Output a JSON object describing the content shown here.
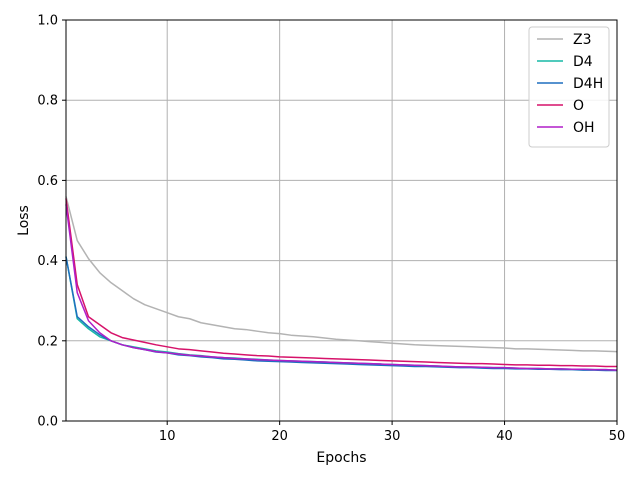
{
  "chart_data": {
    "type": "line",
    "xlabel": "Epochs",
    "ylabel": "Loss",
    "xlim": [
      1,
      50
    ],
    "ylim": [
      0.0,
      1.0
    ],
    "xticks": [
      10,
      20,
      30,
      40,
      50
    ],
    "xtick_labels": [
      "10",
      "20",
      "30",
      "40",
      "50"
    ],
    "yticks": [
      0.0,
      0.2,
      0.4,
      0.6,
      0.8,
      1.0
    ],
    "ytick_labels": [
      "0.0",
      "0.2",
      "0.4",
      "0.6",
      "0.8",
      "1.0"
    ],
    "grid": true,
    "legend": "top-right",
    "x": [
      1,
      2,
      3,
      4,
      5,
      6,
      7,
      8,
      9,
      10,
      11,
      12,
      13,
      14,
      15,
      16,
      17,
      18,
      19,
      20,
      21,
      22,
      23,
      24,
      25,
      26,
      27,
      28,
      29,
      30,
      31,
      32,
      33,
      34,
      35,
      36,
      37,
      38,
      39,
      40,
      41,
      42,
      43,
      44,
      45,
      46,
      47,
      48,
      49,
      50
    ],
    "series": [
      {
        "name": "Z3",
        "color": "#b3b3b3",
        "values": [
          0.56,
          0.45,
          0.405,
          0.37,
          0.345,
          0.325,
          0.305,
          0.29,
          0.28,
          0.27,
          0.26,
          0.255,
          0.245,
          0.24,
          0.235,
          0.23,
          0.228,
          0.224,
          0.22,
          0.218,
          0.214,
          0.212,
          0.21,
          0.207,
          0.204,
          0.202,
          0.2,
          0.198,
          0.196,
          0.194,
          0.192,
          0.19,
          0.189,
          0.188,
          0.187,
          0.186,
          0.185,
          0.184,
          0.183,
          0.182,
          0.18,
          0.18,
          0.179,
          0.178,
          0.177,
          0.176,
          0.175,
          0.175,
          0.174,
          0.173
        ]
      },
      {
        "name": "D4",
        "color": "#17b8a6",
        "values": [
          0.41,
          0.255,
          0.23,
          0.21,
          0.2,
          0.19,
          0.185,
          0.18,
          0.175,
          0.172,
          0.168,
          0.165,
          0.163,
          0.16,
          0.158,
          0.157,
          0.155,
          0.154,
          0.152,
          0.151,
          0.15,
          0.149,
          0.148,
          0.147,
          0.146,
          0.145,
          0.144,
          0.143,
          0.142,
          0.141,
          0.14,
          0.139,
          0.138,
          0.137,
          0.136,
          0.135,
          0.134,
          0.134,
          0.133,
          0.133,
          0.132,
          0.131,
          0.131,
          0.13,
          0.13,
          0.129,
          0.129,
          0.128,
          0.128,
          0.127
        ]
      },
      {
        "name": "D4H",
        "color": "#1f6fbf",
        "values": [
          0.41,
          0.26,
          0.235,
          0.215,
          0.2,
          0.19,
          0.183,
          0.178,
          0.172,
          0.17,
          0.165,
          0.163,
          0.16,
          0.158,
          0.155,
          0.154,
          0.152,
          0.15,
          0.149,
          0.148,
          0.147,
          0.146,
          0.145,
          0.144,
          0.143,
          0.142,
          0.141,
          0.14,
          0.139,
          0.138,
          0.137,
          0.136,
          0.136,
          0.135,
          0.134,
          0.133,
          0.133,
          0.132,
          0.131,
          0.131,
          0.13,
          0.13,
          0.129,
          0.129,
          0.128,
          0.128,
          0.127,
          0.127,
          0.126,
          0.126
        ]
      },
      {
        "name": "O",
        "color": "#d6126a",
        "values": [
          0.555,
          0.34,
          0.26,
          0.24,
          0.22,
          0.208,
          0.202,
          0.196,
          0.19,
          0.185,
          0.18,
          0.178,
          0.175,
          0.172,
          0.169,
          0.167,
          0.165,
          0.163,
          0.162,
          0.16,
          0.159,
          0.158,
          0.157,
          0.156,
          0.155,
          0.154,
          0.153,
          0.152,
          0.151,
          0.15,
          0.149,
          0.148,
          0.147,
          0.146,
          0.145,
          0.144,
          0.143,
          0.143,
          0.142,
          0.141,
          0.14,
          0.14,
          0.139,
          0.139,
          0.138,
          0.138,
          0.137,
          0.137,
          0.136,
          0.136
        ]
      },
      {
        "name": "OH",
        "color": "#b01ec8",
        "values": [
          0.54,
          0.32,
          0.25,
          0.22,
          0.2,
          0.19,
          0.183,
          0.178,
          0.173,
          0.17,
          0.167,
          0.164,
          0.162,
          0.16,
          0.158,
          0.156,
          0.155,
          0.153,
          0.152,
          0.151,
          0.15,
          0.149,
          0.148,
          0.147,
          0.146,
          0.145,
          0.144,
          0.143,
          0.142,
          0.141,
          0.14,
          0.139,
          0.138,
          0.137,
          0.136,
          0.135,
          0.135,
          0.134,
          0.133,
          0.133,
          0.132,
          0.131,
          0.131,
          0.13,
          0.13,
          0.129,
          0.129,
          0.128,
          0.128,
          0.127
        ]
      }
    ]
  }
}
